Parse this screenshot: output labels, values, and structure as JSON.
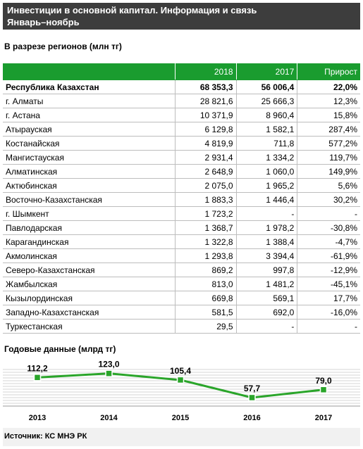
{
  "header": {
    "title_line1": "Инвестиции  в основной капитал. Информация и связь",
    "title_line2": "Январь–ноябрь"
  },
  "table_subtitle": "В разрезе регионов (млн тг)",
  "table": {
    "columns": [
      "",
      "2018",
      "2017",
      "Прирост"
    ],
    "rows": [
      {
        "region": "Республика Казахстан",
        "y2018": "68 353,3",
        "y2017": "56 006,4",
        "growth": "22,0%",
        "total": true
      },
      {
        "region": "г. Алматы",
        "y2018": "28 821,6",
        "y2017": "25 666,3",
        "growth": "12,3%"
      },
      {
        "region": "г. Астана",
        "y2018": "10 371,9",
        "y2017": "8 960,4",
        "growth": "15,8%"
      },
      {
        "region": "Атырауская",
        "y2018": "6 129,8",
        "y2017": "1 582,1",
        "growth": "287,4%"
      },
      {
        "region": "Костанайская",
        "y2018": "4 819,9",
        "y2017": "711,8",
        "growth": "577,2%"
      },
      {
        "region": "Мангистауская",
        "y2018": "2 931,4",
        "y2017": "1 334,2",
        "growth": "119,7%"
      },
      {
        "region": "Алматинская",
        "y2018": "2 648,9",
        "y2017": "1 060,0",
        "growth": "149,9%"
      },
      {
        "region": "Актюбинская",
        "y2018": "2 075,0",
        "y2017": "1 965,2",
        "growth": "5,6%"
      },
      {
        "region": "Восточно-Казахстанская",
        "y2018": "1 883,3",
        "y2017": "1 446,4",
        "growth": "30,2%"
      },
      {
        "region": "г. Шымкент",
        "y2018": "1 723,2",
        "y2017": "-",
        "growth": "-"
      },
      {
        "region": "Павлодарская",
        "y2018": "1 368,7",
        "y2017": "1 978,2",
        "growth": "-30,8%"
      },
      {
        "region": "Карагандинская",
        "y2018": "1 322,8",
        "y2017": "1 388,4",
        "growth": "-4,7%"
      },
      {
        "region": "Акмолинская",
        "y2018": "1 293,8",
        "y2017": "3 394,4",
        "growth": "-61,9%"
      },
      {
        "region": "Северо-Казахстанская",
        "y2018": "869,2",
        "y2017": "997,8",
        "growth": "-12,9%"
      },
      {
        "region": "Жамбылская",
        "y2018": "813,0",
        "y2017": "1 481,2",
        "growth": "-45,1%"
      },
      {
        "region": "Кызылординская",
        "y2018": "669,8",
        "y2017": "569,1",
        "growth": "17,7%"
      },
      {
        "region": "Западно-Казахстанская",
        "y2018": "581,5",
        "y2017": "692,0",
        "growth": "-16,0%"
      },
      {
        "region": "Туркестанская",
        "y2018": "29,5",
        "y2017": "-",
        "growth": "-"
      }
    ]
  },
  "chart_data": {
    "type": "line",
    "title": "Годовые данные (млрд тг)",
    "x": [
      "2013",
      "2014",
      "2015",
      "2016",
      "2017"
    ],
    "values": [
      112.2,
      123.0,
      105.4,
      57.7,
      79.0
    ],
    "value_labels": [
      "112,2",
      "123,0",
      "105,4",
      "57,7",
      "79,0"
    ],
    "line_color": "#2aa52a",
    "marker_color": "#2aa52a",
    "grid": true
  },
  "source": "Источник:  КС  МНЭ РК"
}
